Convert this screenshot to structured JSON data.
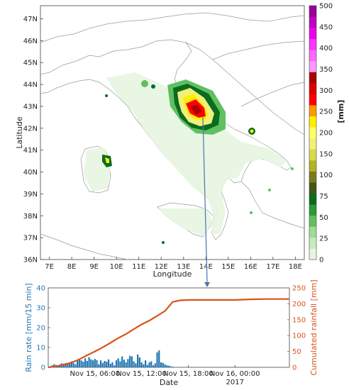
{
  "chart_data": [
    {
      "type": "heatmap",
      "xlabel": "Longitude",
      "ylabel": "Latitude",
      "x_ticks": [
        "7E",
        "8E",
        "9E",
        "10E",
        "11E",
        "12E",
        "13E",
        "14E",
        "15E",
        "16E",
        "17E",
        "18E"
      ],
      "y_ticks": [
        "36N",
        "37N",
        "38N",
        "39N",
        "40N",
        "41N",
        "42N",
        "43N",
        "44N",
        "45N",
        "46N",
        "47N"
      ],
      "xlim": [
        6.6,
        18.4
      ],
      "ylim": [
        36,
        47.6
      ],
      "colorbar": {
        "label": "[mm]",
        "ticks": [
          0,
          25,
          50,
          75,
          100,
          150,
          200,
          250,
          300,
          350,
          400,
          450,
          500
        ],
        "tick_labels": [
          "0",
          "25",
          "50",
          "75",
          "100",
          "150",
          "200",
          "250",
          "300",
          "350",
          "400",
          "450",
          "500"
        ],
        "colors": [
          "#e6f5e0",
          "#c8ebbe",
          "#9fdc95",
          "#5fc060",
          "#2a9a3a",
          "#0b6b1f",
          "#44551a",
          "#7b7a1e",
          "#b3b127",
          "#d9d74a",
          "#f2f07a",
          "#ffff66",
          "#ffee00",
          "#ff9900",
          "#ff0000",
          "#dd0000",
          "#aa0000",
          "#ff99ff",
          "#ff66ff",
          "#ff33ff",
          "#ee00ee",
          "#c000c0",
          "#990099"
        ]
      },
      "hotspot": {
        "lon": 13.7,
        "lat": 42.8
      }
    },
    {
      "type": "bar",
      "xlabel": "Date",
      "ylabel": "Rain rate [mm/15 min]",
      "y2label": "Cumulated rainfall [mm]",
      "ylim": [
        0,
        40
      ],
      "y2lim": [
        0,
        250
      ],
      "xlim_hours": [
        0,
        31
      ],
      "x_ticks": [
        {
          "hour": 6,
          "label": "Nov 15, 06:00"
        },
        {
          "hour": 12,
          "label": "Nov 15, 12:00"
        },
        {
          "hour": 18,
          "label": "Nov 15, 18:00"
        },
        {
          "hour": 24,
          "label": "Nov 16, 00:00"
        }
      ],
      "year_label": "2017",
      "y_ticks": [
        0,
        10,
        20,
        30,
        40
      ],
      "y2_ticks": [
        0,
        50,
        100,
        150,
        200,
        250
      ],
      "series": [
        {
          "kind": "bar",
          "color": "#1f77b4",
          "x": [
            0.25,
            0.5,
            0.75,
            1,
            1.25,
            1.5,
            1.75,
            2,
            2.25,
            2.5,
            2.75,
            3,
            3.25,
            3.5,
            3.75,
            4,
            4.25,
            4.5,
            4.75,
            5,
            5.25,
            5.5,
            5.75,
            6,
            6.25,
            6.5,
            6.75,
            7,
            7.25,
            7.5,
            7.75,
            8,
            8.25,
            8.5,
            8.75,
            9,
            9.25,
            9.5,
            9.75,
            10,
            10.25,
            10.5,
            10.75,
            11,
            11.25,
            11.5,
            11.75,
            12,
            12.25,
            12.5,
            12.75,
            13,
            13.25,
            13.5,
            13.75,
            14,
            14.25,
            14.5,
            14.75,
            15,
            15.25,
            15.5,
            15.75,
            16
          ],
          "values": [
            0.5,
            1.0,
            1.5,
            1.2,
            0.8,
            1.5,
            2.0,
            1.8,
            2.2,
            1.5,
            2.5,
            3.0,
            2.2,
            1.5,
            3.2,
            4.2,
            3.5,
            2.8,
            4.5,
            3.2,
            5.0,
            4.0,
            3.5,
            4.2,
            3.6,
            1.5,
            3.5,
            2.2,
            3.2,
            2.8,
            4.0,
            1.8,
            2.5,
            1.0,
            3.5,
            4.5,
            3.0,
            5.5,
            3.8,
            2.5,
            4.2,
            5.8,
            5.5,
            3.0,
            2.0,
            6.5,
            5.0,
            2.5,
            1.5,
            3.5,
            1.2,
            2.5,
            3.0,
            1.0,
            2.0,
            7.5,
            8.5,
            2.5,
            2.2,
            1.5,
            1.0,
            0.8,
            0.5,
            0.3
          ]
        },
        {
          "kind": "line",
          "color": "#d95319",
          "x": [
            0,
            1,
            2,
            3,
            4,
            5,
            6,
            7,
            8,
            9,
            10,
            11,
            12,
            13,
            14,
            15,
            16,
            17,
            18,
            20,
            22,
            24,
            26,
            28,
            30,
            31
          ],
          "values": [
            0,
            3,
            8,
            15,
            25,
            38,
            50,
            63,
            77,
            92,
            105,
            120,
            135,
            147,
            162,
            177,
            206,
            211,
            212,
            212,
            212,
            212,
            214,
            215,
            215,
            215
          ]
        }
      ]
    }
  ]
}
